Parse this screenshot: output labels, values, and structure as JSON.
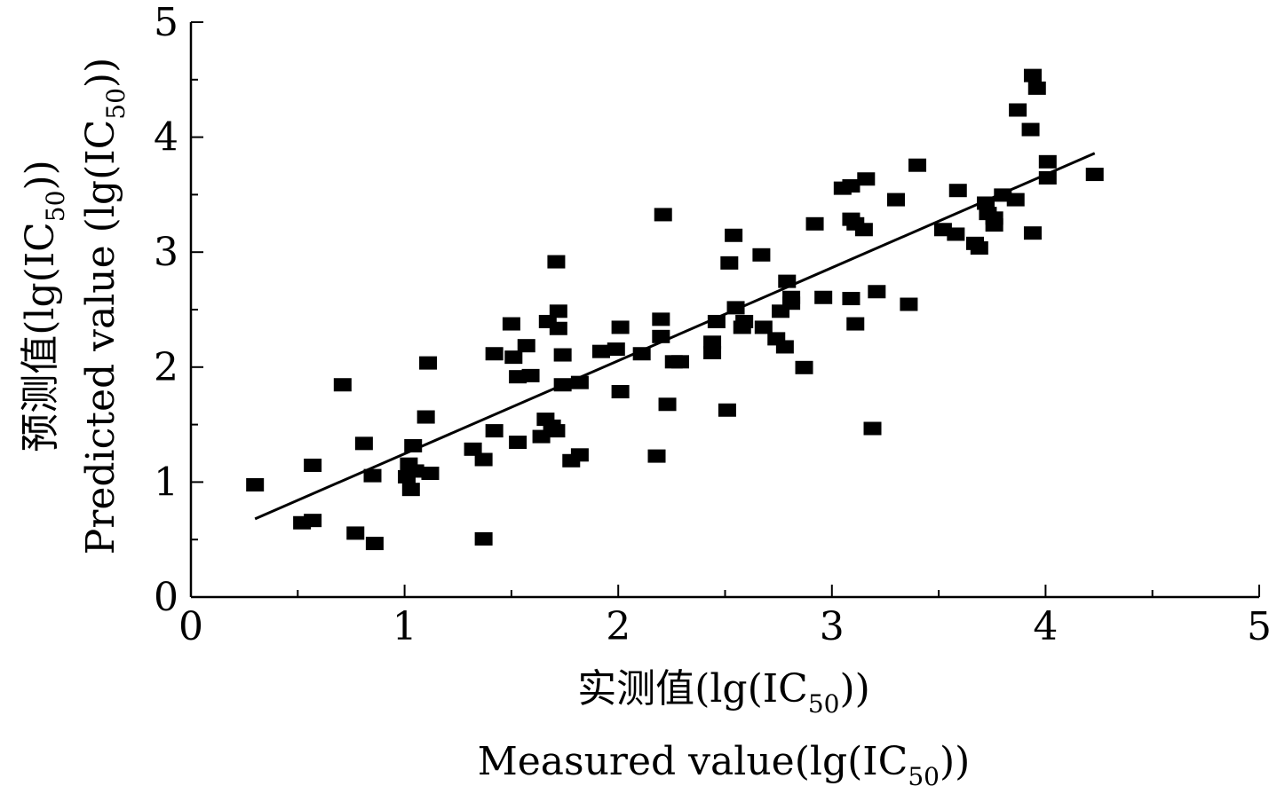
{
  "chart_data": {
    "type": "scatter",
    "xlabel_cn": "实测值",
    "xlabel_en": "Measured value",
    "ylabel_cn": "预测值",
    "ylabel_en": "Predicted value ",
    "label_open": "(lg(IC",
    "label_sub": "50",
    "label_close": "))",
    "xlim": [
      0,
      5
    ],
    "ylim": [
      0,
      5
    ],
    "xticks": [
      0,
      1,
      2,
      3,
      4,
      5
    ],
    "yticks": [
      0,
      1,
      2,
      3,
      4,
      5
    ],
    "xtick_labels": [
      "0",
      "1",
      "2",
      "3",
      "4",
      "5"
    ],
    "ytick_labels": [
      "0",
      "1",
      "2",
      "3",
      "4",
      "5"
    ],
    "grid": false,
    "marker": "square",
    "marker_color": "#000000",
    "points": [
      [
        0.3,
        0.98
      ],
      [
        0.52,
        0.65
      ],
      [
        0.57,
        0.67
      ],
      [
        0.57,
        1.15
      ],
      [
        0.71,
        1.85
      ],
      [
        0.77,
        0.56
      ],
      [
        0.81,
        1.34
      ],
      [
        0.85,
        1.06
      ],
      [
        0.86,
        0.47
      ],
      [
        1.01,
        1.05
      ],
      [
        1.02,
        1.16
      ],
      [
        1.03,
        0.94
      ],
      [
        1.04,
        1.32
      ],
      [
        1.05,
        1.1
      ],
      [
        1.1,
        1.57
      ],
      [
        1.11,
        2.04
      ],
      [
        1.12,
        1.08
      ],
      [
        1.32,
        1.29
      ],
      [
        1.37,
        0.51
      ],
      [
        1.37,
        1.2
      ],
      [
        1.42,
        1.45
      ],
      [
        1.42,
        2.12
      ],
      [
        1.5,
        2.38
      ],
      [
        1.51,
        2.09
      ],
      [
        1.53,
        1.92
      ],
      [
        1.53,
        1.35
      ],
      [
        1.57,
        2.19
      ],
      [
        1.59,
        1.93
      ],
      [
        1.64,
        1.4
      ],
      [
        1.66,
        1.55
      ],
      [
        1.67,
        2.4
      ],
      [
        1.69,
        1.49
      ],
      [
        1.71,
        1.45
      ],
      [
        1.72,
        2.49
      ],
      [
        1.72,
        2.34
      ],
      [
        1.71,
        2.92
      ],
      [
        1.74,
        2.11
      ],
      [
        1.74,
        1.85
      ],
      [
        1.78,
        1.19
      ],
      [
        1.82,
        1.87
      ],
      [
        1.82,
        1.24
      ],
      [
        1.92,
        2.14
      ],
      [
        1.99,
        2.16
      ],
      [
        2.01,
        2.35
      ],
      [
        2.01,
        1.79
      ],
      [
        2.11,
        2.12
      ],
      [
        2.18,
        1.23
      ],
      [
        2.2,
        2.42
      ],
      [
        2.2,
        2.27
      ],
      [
        2.21,
        3.33
      ],
      [
        2.23,
        1.68
      ],
      [
        2.26,
        2.05
      ],
      [
        2.29,
        2.05
      ],
      [
        2.44,
        2.13
      ],
      [
        2.44,
        2.22
      ],
      [
        2.46,
        2.4
      ],
      [
        2.51,
        1.63
      ],
      [
        2.52,
        2.91
      ],
      [
        2.54,
        3.15
      ],
      [
        2.55,
        2.52
      ],
      [
        2.58,
        2.35
      ],
      [
        2.59,
        2.4
      ],
      [
        2.67,
        2.98
      ],
      [
        2.68,
        2.35
      ],
      [
        2.74,
        2.25
      ],
      [
        2.76,
        2.49
      ],
      [
        2.78,
        2.18
      ],
      [
        2.79,
        2.75
      ],
      [
        2.81,
        2.61
      ],
      [
        2.81,
        2.56
      ],
      [
        2.87,
        2.0
      ],
      [
        2.92,
        3.25
      ],
      [
        2.96,
        2.61
      ],
      [
        3.05,
        3.56
      ],
      [
        3.09,
        3.29
      ],
      [
        3.09,
        3.58
      ],
      [
        3.09,
        2.6
      ],
      [
        3.11,
        3.25
      ],
      [
        3.11,
        2.38
      ],
      [
        3.15,
        3.2
      ],
      [
        3.16,
        3.64
      ],
      [
        3.19,
        1.47
      ],
      [
        3.21,
        2.66
      ],
      [
        3.3,
        3.46
      ],
      [
        3.36,
        2.55
      ],
      [
        3.4,
        3.76
      ],
      [
        3.52,
        3.2
      ],
      [
        3.58,
        3.16
      ],
      [
        3.59,
        3.54
      ],
      [
        3.67,
        3.08
      ],
      [
        3.69,
        3.04
      ],
      [
        3.72,
        3.43
      ],
      [
        3.73,
        3.34
      ],
      [
        3.76,
        3.24
      ],
      [
        3.76,
        3.3
      ],
      [
        3.8,
        3.5
      ],
      [
        3.86,
        3.46
      ],
      [
        3.87,
        4.24
      ],
      [
        3.93,
        4.07
      ],
      [
        3.94,
        4.54
      ],
      [
        3.94,
        3.17
      ],
      [
        3.96,
        4.43
      ],
      [
        4.01,
        3.79
      ],
      [
        4.01,
        3.65
      ],
      [
        4.23,
        3.68
      ]
    ],
    "fit_line": {
      "x": [
        0.3,
        4.23
      ],
      "y": [
        0.68,
        3.86
      ]
    }
  }
}
